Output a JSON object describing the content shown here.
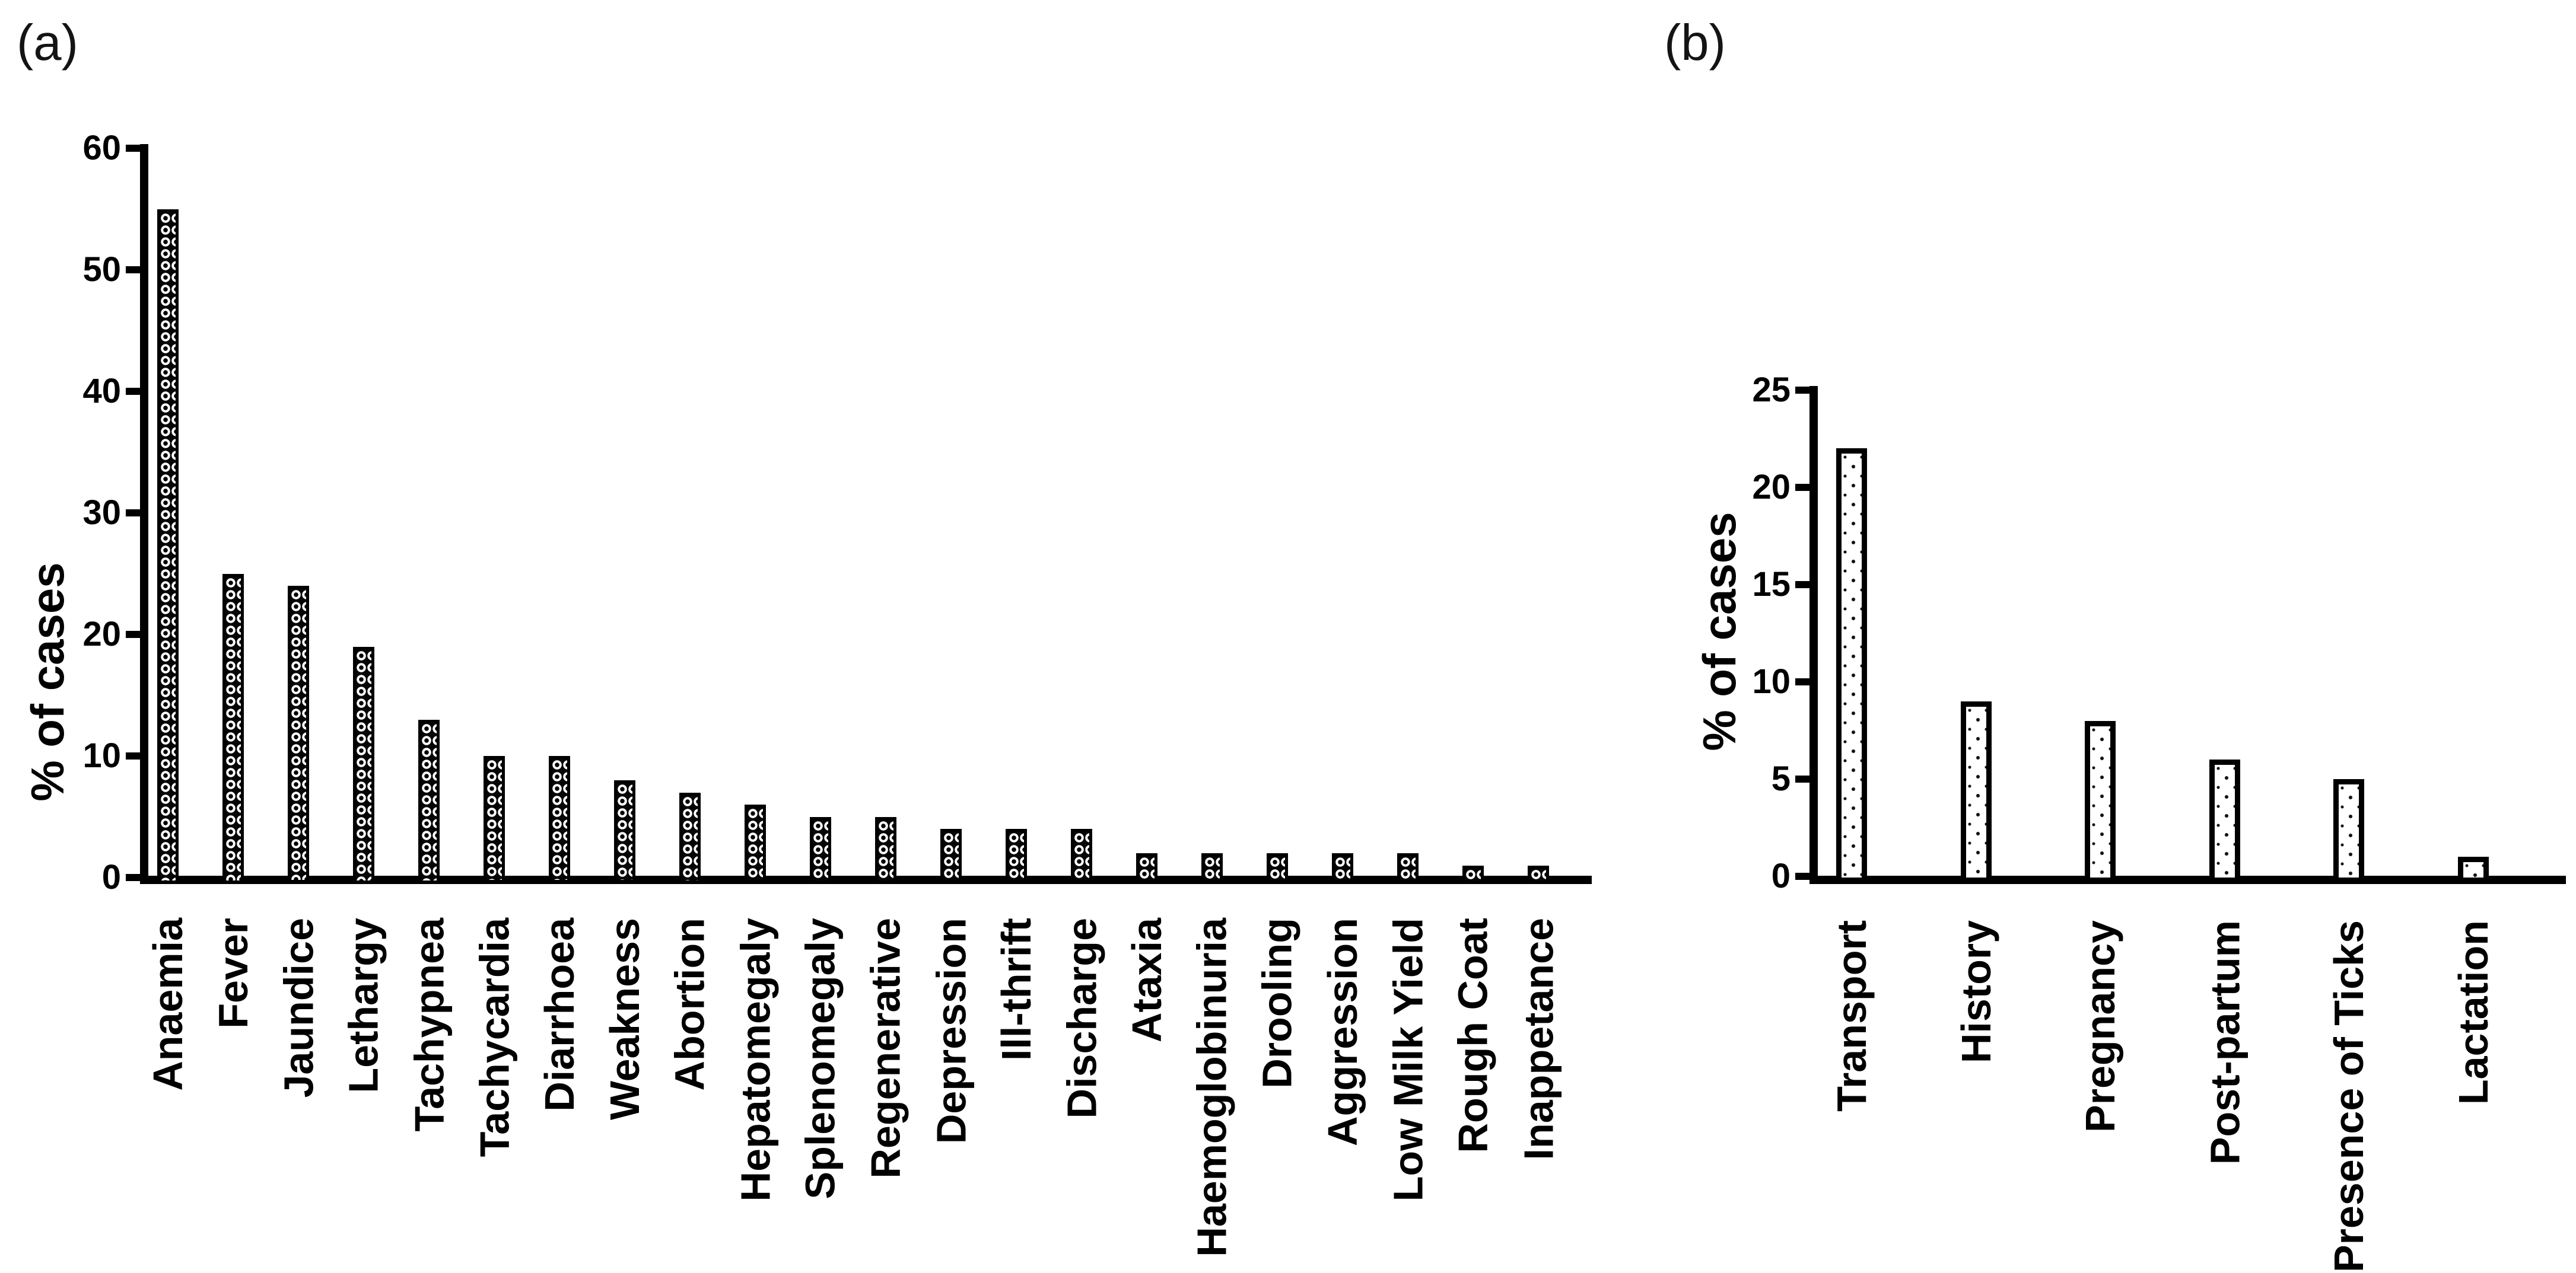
{
  "colors": {
    "background": "#ffffff",
    "ink": "#000000"
  },
  "chart_data": [
    {
      "panel_label": "(a)",
      "type": "bar",
      "title": "",
      "xlabel": "",
      "ylabel": "% of cases",
      "ylim": [
        0,
        60
      ],
      "yticks": [
        0,
        10,
        20,
        30,
        40,
        50,
        60
      ],
      "grid": false,
      "legend": "none",
      "bar_style": "black bars with white chain/crosshatch texture",
      "categories": [
        "Anaemia",
        "Fever",
        "Jaundice",
        "Lethargy",
        "Tachypnea",
        "Tachycardia",
        "Diarrhoea",
        "Weakness",
        "Abortion",
        "Hepatomegaly",
        "Splenomegaly",
        "Regenerative",
        "Depression",
        "Ill-thrift",
        "Discharge",
        "Ataxia",
        "Haemoglobinuria",
        "Drooling",
        "Aggression",
        "Low Milk Yield",
        "Rough Coat",
        "Inappetance"
      ],
      "values": [
        55,
        25,
        24,
        19,
        13,
        10,
        10,
        8,
        7,
        6,
        5,
        5,
        4,
        4,
        4,
        2,
        2,
        2,
        2,
        2,
        1,
        1
      ]
    },
    {
      "panel_label": "(b)",
      "type": "bar",
      "title": "",
      "xlabel": "",
      "ylabel": "% of cases",
      "ylim": [
        0,
        25
      ],
      "yticks": [
        0,
        5,
        10,
        15,
        20,
        25
      ],
      "grid": false,
      "legend": "none",
      "bar_style": "white bars with black stipple dots and thick black outline",
      "categories": [
        "Transport",
        "History",
        "Pregnancy",
        "Post-partum",
        "Presence of Ticks",
        "Lactation"
      ],
      "values": [
        22,
        9,
        8,
        6,
        5,
        1
      ]
    }
  ]
}
